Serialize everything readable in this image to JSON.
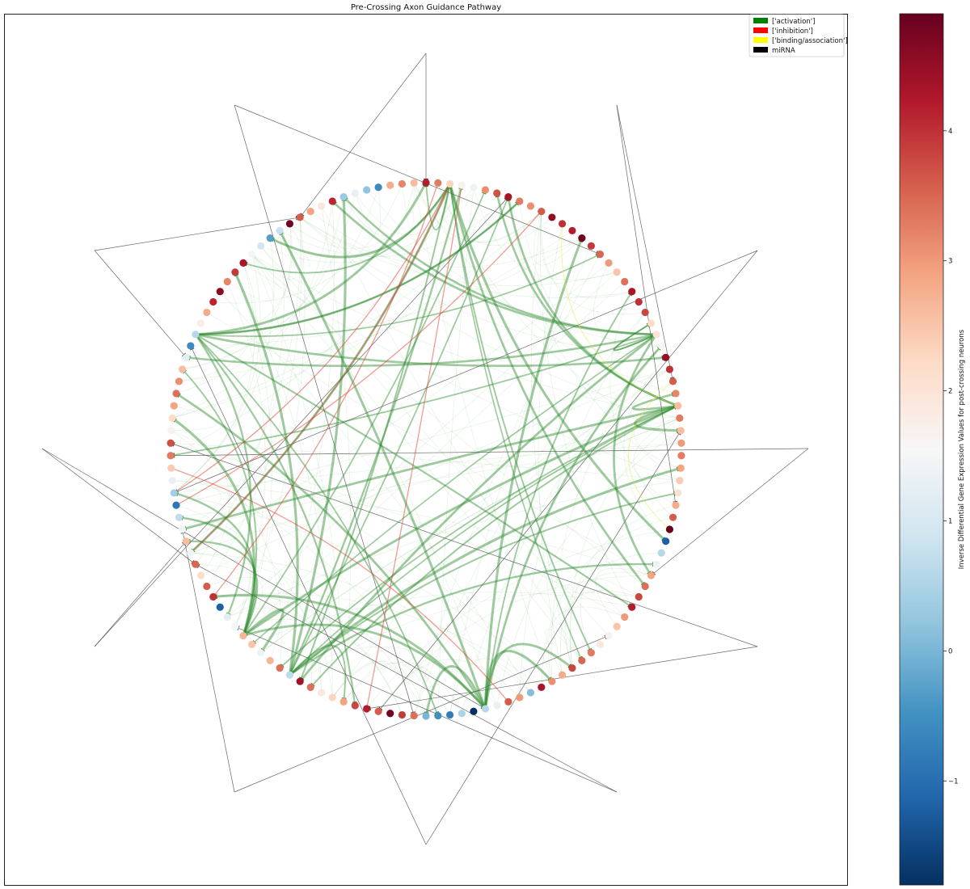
{
  "figure": {
    "title": "Pre-Crossing Axon Guidance Pathway"
  },
  "legend": {
    "placement": "top-right",
    "items": [
      {
        "label": "['activation']",
        "color": "#008000"
      },
      {
        "label": "['inhibition']",
        "color": "#ff0000"
      },
      {
        "label": "['binding/association']",
        "color": "#ffff00"
      },
      {
        "label": "miRNA",
        "color": "#000000"
      }
    ]
  },
  "colorbar": {
    "label": "Inverse Differential Gene Expression Values for post-crossing neurons",
    "colormap": "RdBu_r",
    "range": [
      -1.8,
      4.9
    ],
    "ticks": [
      {
        "value": -1,
        "label": "−1"
      },
      {
        "value": 0,
        "label": "0"
      },
      {
        "value": 1,
        "label": "1"
      },
      {
        "value": 2,
        "label": "2"
      },
      {
        "value": 3,
        "label": "3"
      },
      {
        "value": 4,
        "label": "4"
      }
    ],
    "stops": [
      "#053061",
      "#2166ac",
      "#4393c3",
      "#92c5de",
      "#d1e5f0",
      "#f7f7f7",
      "#fddbc7",
      "#f4a582",
      "#d6604d",
      "#b2182b",
      "#67001f"
    ]
  },
  "network": {
    "node_values": [
      4.2,
      3.3,
      2.3,
      1.7,
      1.4,
      3.1,
      3.7,
      4.3,
      3.3,
      3.1,
      3.6,
      4.5,
      4.0,
      4.2,
      4.8,
      3.9,
      3.5,
      3.0,
      2.5,
      3.4,
      4.3,
      4.0,
      3.8,
      2.2,
      2.0,
      1.5,
      4.5,
      4.0,
      3.6,
      3.2,
      2.6,
      3.3,
      2.6,
      3.0,
      3.3,
      2.9,
      2.4,
      2.1,
      2.8,
      3.6,
      4.9,
      -1.2,
      0.6,
      1.4,
      2.9,
      3.4,
      3.8,
      4.2,
      3.0,
      2.5,
      1.7,
      1.9,
      3.3,
      3.5,
      3.8,
      2.8,
      3.1,
      4.3,
      0.1,
      3.0,
      3.6,
      1.3,
      0.6,
      -1.8,
      0.5,
      -0.8,
      -0.5,
      0.0,
      3.4,
      3.9,
      4.8,
      3.6,
      4.2,
      3.8,
      2.9,
      2.3,
      1.9,
      3.4,
      4.4,
      0.7,
      3.4,
      2.7,
      1.4,
      2.5,
      2.7,
      1.5,
      1.2,
      -1.2,
      4.0,
      3.6,
      2.2,
      3.5,
      1.4,
      2.6,
      1.4,
      0.7,
      -0.9,
      0.4,
      1.3,
      2.4,
      3.3,
      3.7,
      1.7,
      2.2,
      2.9,
      3.4,
      3.1,
      2.6,
      1.2,
      -0.6,
      0.6,
      1.8,
      2.8,
      4.1,
      4.6,
      3.2,
      3.9,
      4.3,
      1.5,
      0.9,
      -0.3,
      0.8,
      4.8,
      3.6,
      2.9,
      1.9,
      4.1,
      0.3,
      1.3,
      0.2,
      -0.6,
      2.8,
      3.2,
      2.6
    ]
  }
}
